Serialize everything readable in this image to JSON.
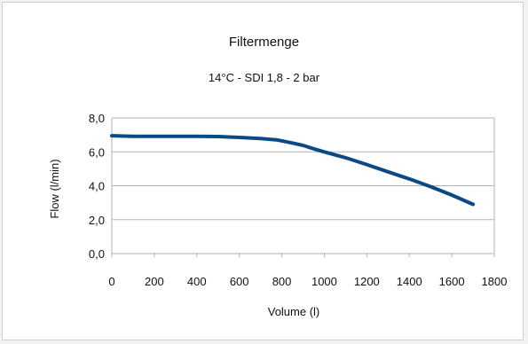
{
  "chart_data": {
    "type": "line",
    "title": "Filtermenge",
    "subtitle": "14°C - SDI 1,8 - 2 bar",
    "xlabel": "Volume (l)",
    "ylabel": "Flow (l/min)",
    "xlim": [
      0,
      1800
    ],
    "ylim": [
      0,
      8
    ],
    "xticks": [
      "0",
      "200",
      "400",
      "600",
      "800",
      "1000",
      "1200",
      "1400",
      "1600",
      "1800"
    ],
    "yticks": [
      "0,0",
      "2,0",
      "4,0",
      "6,0",
      "8,0"
    ],
    "grid": "horizontal",
    "legend": "none",
    "series": [
      {
        "color": "#0a4a84",
        "x": [
          0,
          100,
          200,
          300,
          400,
          500,
          600,
          700,
          780,
          850,
          900,
          950,
          1000,
          1100,
          1200,
          1300,
          1400,
          1500,
          1600,
          1700
        ],
        "y": [
          6.95,
          6.92,
          6.92,
          6.92,
          6.92,
          6.9,
          6.85,
          6.78,
          6.7,
          6.52,
          6.38,
          6.18,
          6.0,
          5.65,
          5.25,
          4.82,
          4.4,
          3.95,
          3.45,
          2.9
        ]
      }
    ]
  }
}
